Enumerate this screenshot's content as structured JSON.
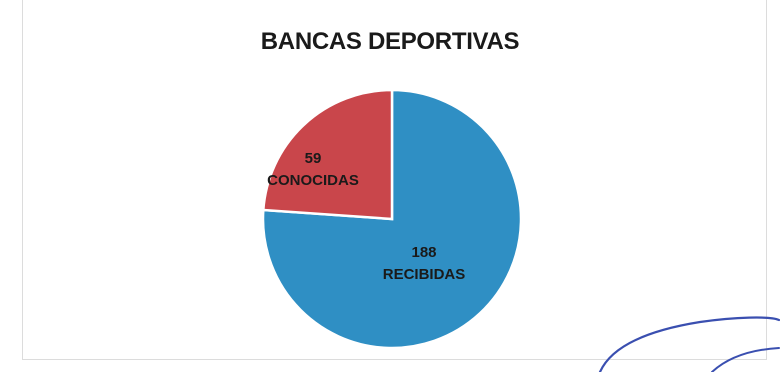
{
  "chart_data": {
    "type": "pie",
    "title": "BANCAS DEPORTIVAS",
    "slices": [
      {
        "value": 188,
        "label": "RECIBIDAS",
        "value_text": "188",
        "color": "#2f8fc4"
      },
      {
        "value": 59,
        "label": "CONOCIDAS",
        "value_text": "59",
        "color": "#c9464b"
      }
    ],
    "legend": "none"
  }
}
